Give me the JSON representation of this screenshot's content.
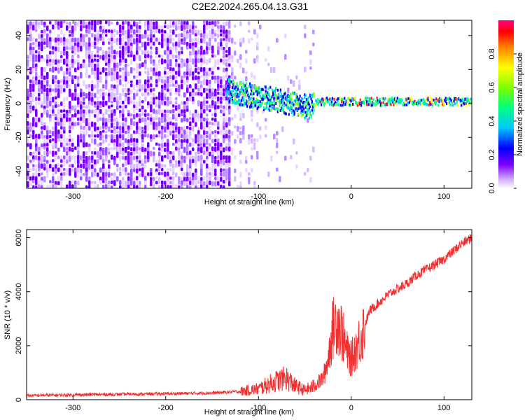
{
  "title": "C2E2.2024.265.04.13.G31",
  "colors": {
    "series": "#f03030",
    "frame": "#000000"
  },
  "chart_data": [
    {
      "type": "heatmap",
      "xlabel": "Height of straight line (km)",
      "ylabel": "Frequency (Hz)",
      "xlim": [
        -350,
        130
      ],
      "ylim": [
        -50,
        49
      ],
      "x_ticks": [
        -300,
        -200,
        -100,
        0,
        100
      ],
      "y_ticks": [
        -40,
        -20,
        0,
        20,
        40
      ],
      "colorbar": {
        "label": "Normalized spectral amplitude",
        "range": [
          0,
          1
        ],
        "ticks": [
          "0.0",
          "0.2",
          "0.4",
          "0.6",
          "0.8"
        ],
        "colormap": [
          "#ffffff",
          "#8000ff",
          "#0000ff",
          "#00c8ff",
          "#00ff80",
          "#80ff00",
          "#ffff00",
          "#ff8000",
          "#ff0000",
          "#ff0080"
        ]
      },
      "description_points": {
        "ridge": [
          {
            "x": -135,
            "y": 8
          },
          {
            "x": -120,
            "y": 6
          },
          {
            "x": -105,
            "y": 4
          },
          {
            "x": -90,
            "y": 3
          },
          {
            "x": -75,
            "y": 1
          },
          {
            "x": -60,
            "y": -1
          },
          {
            "x": -45,
            "y": -2
          },
          {
            "x": -35,
            "y": 1
          },
          {
            "x": -20,
            "y": 1
          },
          {
            "x": 0,
            "y": 1
          },
          {
            "x": 30,
            "y": 1
          },
          {
            "x": 60,
            "y": 1
          },
          {
            "x": 90,
            "y": 1
          },
          {
            "x": 130,
            "y": 1
          }
        ]
      }
    },
    {
      "type": "line",
      "xlabel": "Height of straight line (km)",
      "ylabel": "SNR (10 * v/v)",
      "xlim": [
        -350,
        130
      ],
      "ylim": [
        0,
        6300
      ],
      "x_ticks": [
        -300,
        -200,
        -100,
        0,
        100
      ],
      "y_ticks": [
        0,
        2000,
        4000,
        6000
      ],
      "series": [
        {
          "x": [
            -350,
            -300,
            -250,
            -200,
            -150,
            -120,
            -100,
            -90,
            -80,
            -70,
            -60,
            -50,
            -40,
            -30,
            -25,
            -20,
            -15,
            -10,
            -5,
            0,
            10,
            20,
            30,
            40,
            50,
            60,
            70,
            80,
            90,
            100,
            110,
            120,
            130
          ],
          "y": [
            150,
            180,
            200,
            220,
            250,
            300,
            400,
            550,
            700,
            800,
            500,
            350,
            500,
            800,
            1500,
            2600,
            3000,
            2500,
            1800,
            1500,
            2300,
            3300,
            3600,
            3900,
            4100,
            4300,
            4600,
            4800,
            5000,
            5200,
            5500,
            5800,
            6000
          ]
        }
      ]
    }
  ]
}
